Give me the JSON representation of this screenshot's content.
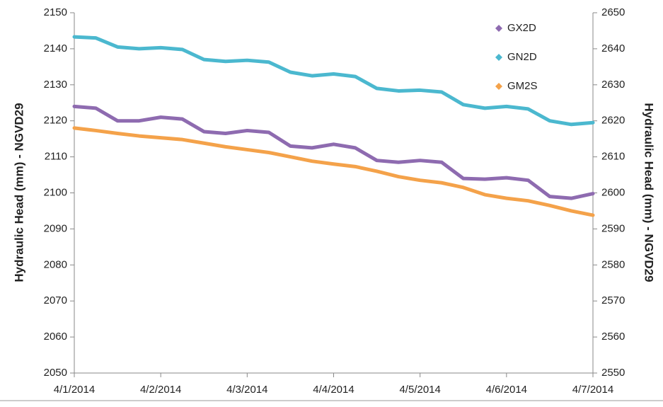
{
  "chart_data": {
    "type": "line",
    "y_label": "Hydraulic Head (mm) - NGVD29",
    "y2_label": "Hydraulic Head (mm) - NGVD29",
    "x": [
      0,
      0.25,
      0.5,
      0.75,
      1,
      1.25,
      1.5,
      1.75,
      2,
      2.25,
      2.5,
      2.75,
      3,
      3.25,
      3.5,
      3.75,
      4,
      4.25,
      4.5,
      4.75,
      5,
      5.25,
      5.5,
      5.75,
      6
    ],
    "xlim": [
      0,
      6
    ],
    "xticks": [
      {
        "value": 0,
        "label": "4/1/2014"
      },
      {
        "value": 1,
        "label": "4/2/2014"
      },
      {
        "value": 2,
        "label": "4/3/2014"
      },
      {
        "value": 3,
        "label": "4/4/2014"
      },
      {
        "value": 4,
        "label": "4/5/2014"
      },
      {
        "value": 5,
        "label": "4/6/2014"
      },
      {
        "value": 6,
        "label": "4/7/2014"
      }
    ],
    "ylim": [
      2050,
      2150
    ],
    "yticks": [
      2050,
      2060,
      2070,
      2080,
      2090,
      2100,
      2110,
      2120,
      2130,
      2140,
      2150
    ],
    "y2lim": [
      2550,
      2650
    ],
    "y2ticks": [
      2550,
      2560,
      2570,
      2580,
      2590,
      2600,
      2610,
      2620,
      2630,
      2640,
      2650
    ],
    "legend": "upper right",
    "grid": false,
    "series": [
      {
        "name": "GX2D",
        "color": "#8e6bb0",
        "values": [
          2124,
          2123.5,
          2120,
          2120,
          2121,
          2120.5,
          2117,
          2116.5,
          2117.3,
          2116.8,
          2113,
          2112.5,
          2113.5,
          2112.5,
          2109,
          2108.5,
          2109,
          2108.5,
          2104,
          2103.8,
          2104.2,
          2103.5,
          2099,
          2098.5,
          2099.8
        ]
      },
      {
        "name": "GN2D",
        "color": "#4bb8cf",
        "axis": "y2",
        "values": [
          2643.3,
          2643,
          2640.5,
          2640,
          2640.3,
          2639.8,
          2637,
          2636.5,
          2636.8,
          2636.3,
          2633.5,
          2632.5,
          2633,
          2632.3,
          2629,
          2628.3,
          2628.5,
          2628,
          2624.5,
          2623.5,
          2624,
          2623.3,
          2620,
          2619,
          2619.5
        ]
      },
      {
        "name": "GM2S",
        "color": "#f4a24a",
        "values": [
          2118,
          2117.3,
          2116.5,
          2115.8,
          2115.3,
          2114.8,
          2113.8,
          2112.8,
          2112,
          2111.2,
          2110,
          2108.8,
          2108,
          2107.3,
          2106,
          2104.5,
          2103.5,
          2102.8,
          2101.5,
          2099.5,
          2098.5,
          2097.8,
          2096.5,
          2095,
          2093.8
        ]
      }
    ]
  }
}
